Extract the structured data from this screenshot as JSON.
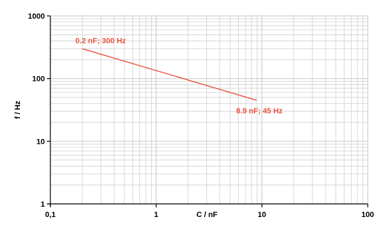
{
  "chart_data": {
    "type": "line",
    "x_scale": "log",
    "y_scale": "log",
    "xlim": [
      0.1,
      100
    ],
    "ylim": [
      1,
      1000
    ],
    "xlabel": "C / nF",
    "ylabel": "f / Hz",
    "x_tick_labels": [
      "0,1",
      "1",
      "10",
      "100"
    ],
    "x_tick_values": [
      0.1,
      1,
      10,
      100
    ],
    "y_tick_labels": [
      "1",
      "10",
      "100",
      "1000"
    ],
    "y_tick_values": [
      1,
      10,
      100,
      1000
    ],
    "grid": true,
    "series": [
      {
        "x": [
          0.2,
          8.9
        ],
        "y": [
          300,
          45
        ],
        "color": "#e8553e"
      }
    ],
    "annotations": [
      {
        "text": "0.2 nF; 300 Hz",
        "x": 0.2,
        "y": 300,
        "position": "above-left"
      },
      {
        "text": "8.9 nF; 45 Hz",
        "x": 8.9,
        "y": 45,
        "position": "below-right"
      }
    ]
  },
  "colors": {
    "series": "#e8553e",
    "grid": "#cfcfcf",
    "axis": "#000000",
    "text": "#000000"
  }
}
